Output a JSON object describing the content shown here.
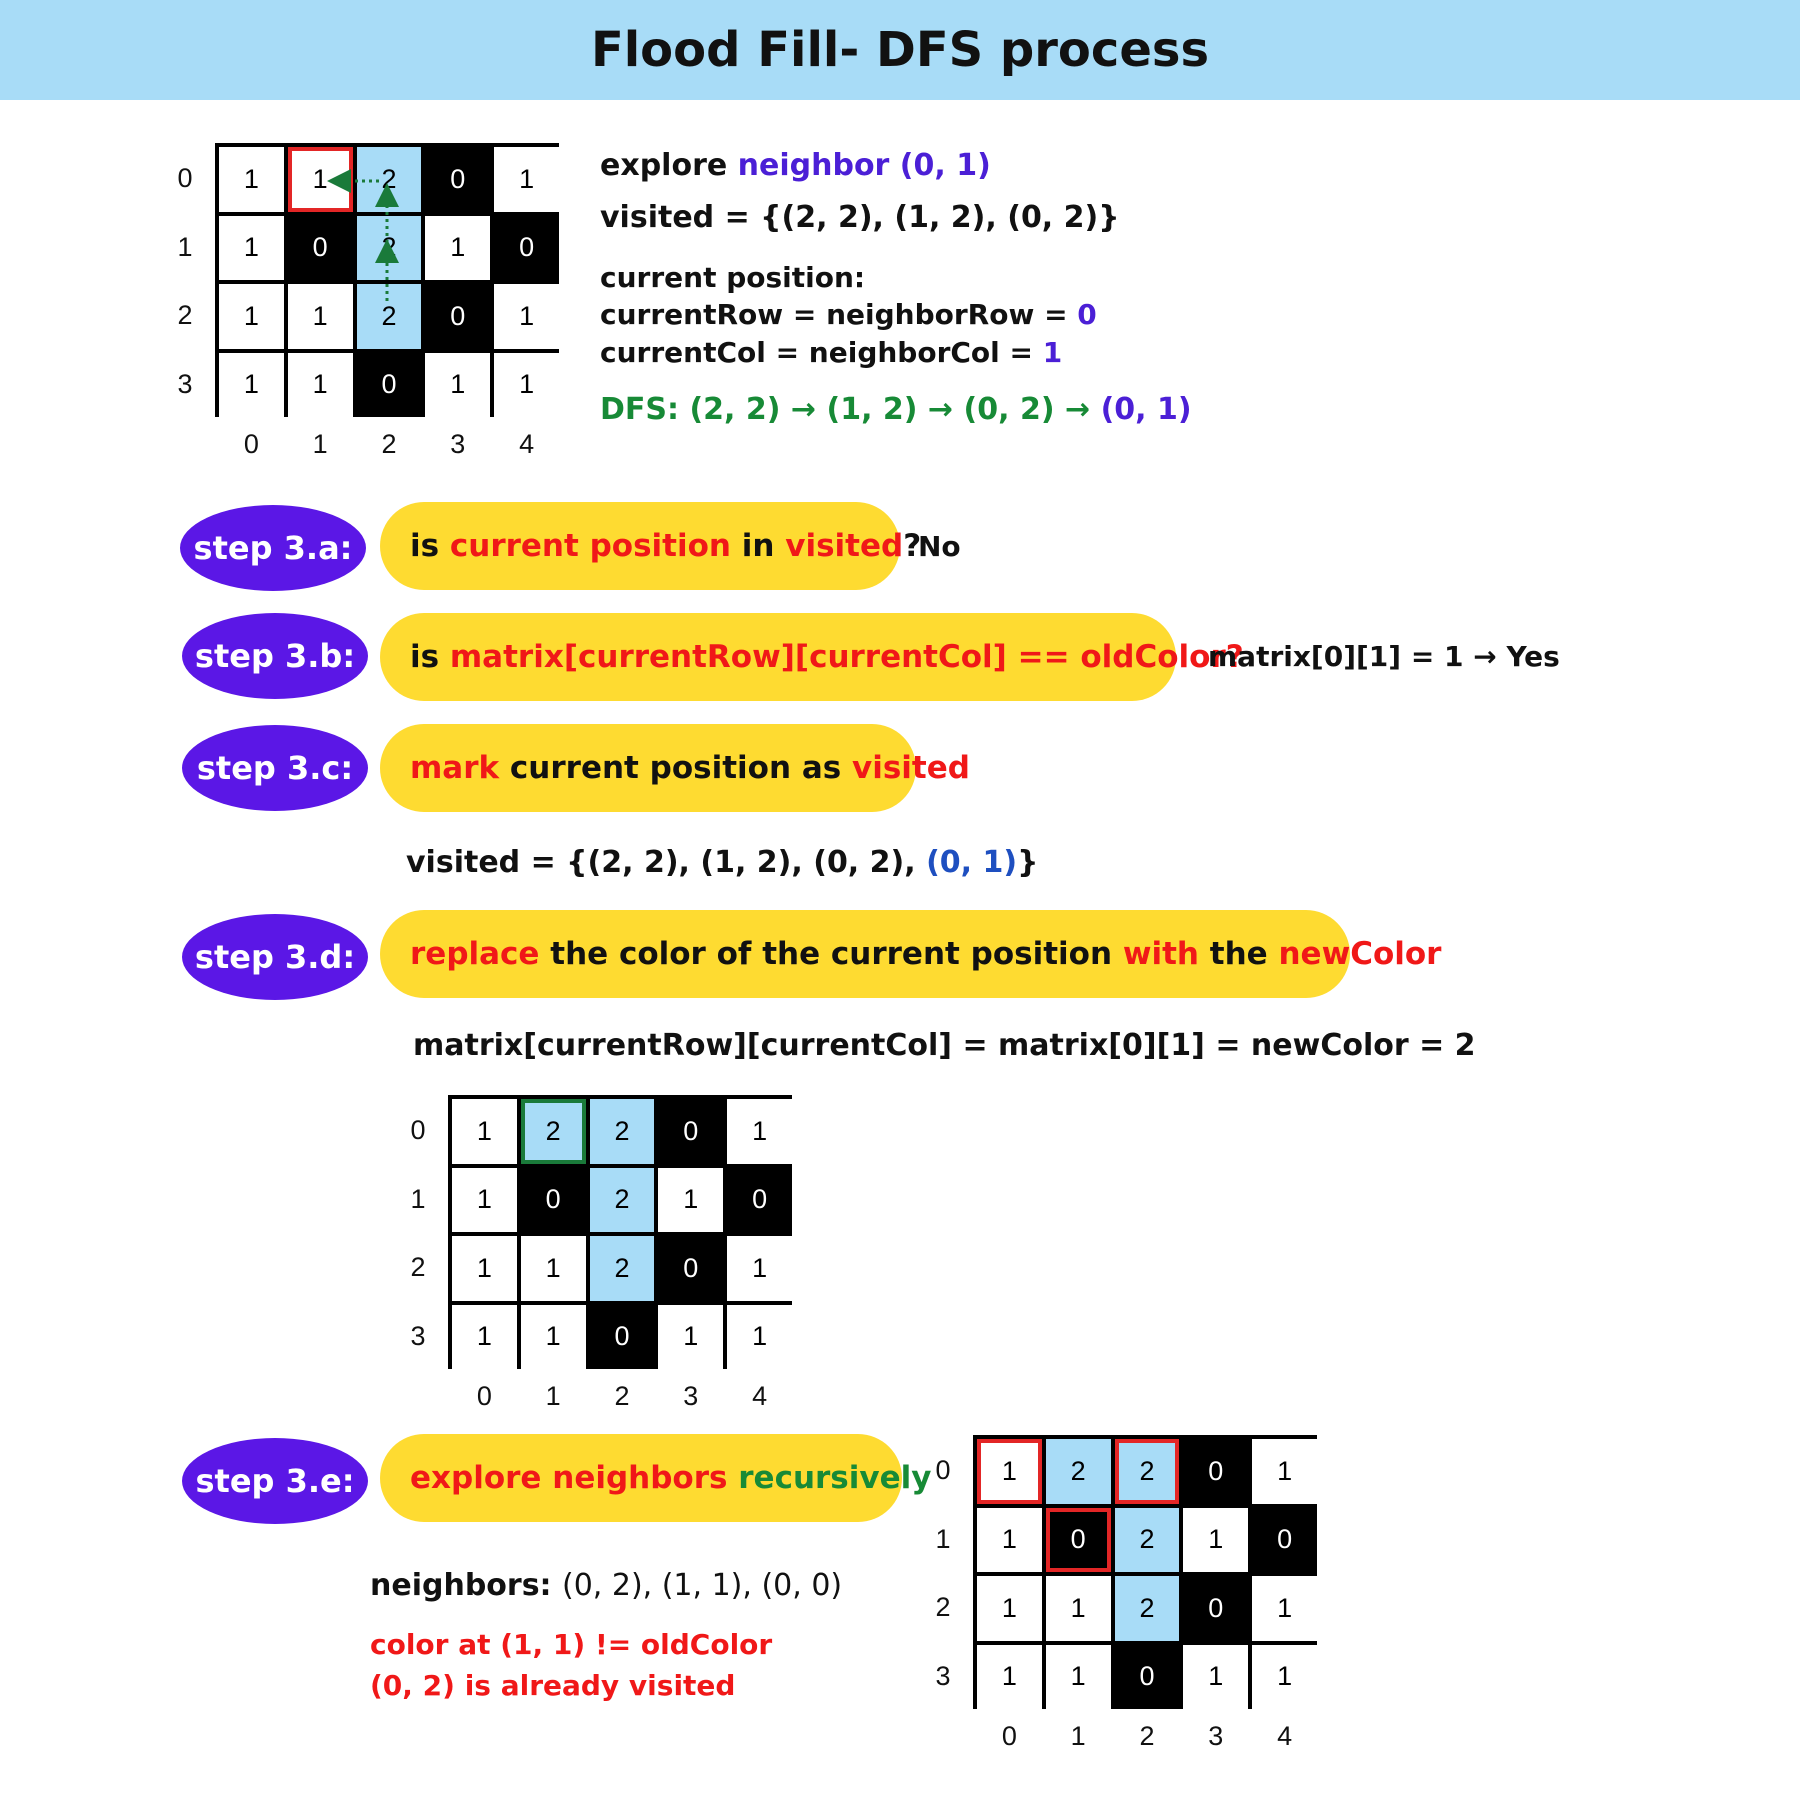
{
  "title": "Flood Fill- DFS process",
  "colors": {
    "blue_cell": "#a8dcf7",
    "header": "#a8dcf7",
    "step_oval": "#5b17e6",
    "pill": "#fedb31",
    "highlight_red": "#e32626",
    "highlight_green": "#1a7a3a"
  },
  "row_labels": [
    "0",
    "1",
    "2",
    "3"
  ],
  "col_labels": [
    "0",
    "1",
    "2",
    "3",
    "4"
  ],
  "grid1": [
    [
      "1",
      "1",
      "2",
      "0",
      "1"
    ],
    [
      "1",
      "0",
      "2",
      "1",
      "0"
    ],
    [
      "1",
      "1",
      "2",
      "0",
      "1"
    ],
    [
      "1",
      "1",
      "0",
      "1",
      "1"
    ]
  ],
  "grid2": [
    [
      "1",
      "2",
      "2",
      "0",
      "1"
    ],
    [
      "1",
      "0",
      "2",
      "1",
      "0"
    ],
    [
      "1",
      "1",
      "2",
      "0",
      "1"
    ],
    [
      "1",
      "1",
      "0",
      "1",
      "1"
    ]
  ],
  "grid3": [
    [
      "1",
      "2",
      "2",
      "0",
      "1"
    ],
    [
      "1",
      "0",
      "2",
      "1",
      "0"
    ],
    [
      "1",
      "1",
      "2",
      "0",
      "1"
    ],
    [
      "1",
      "1",
      "0",
      "1",
      "1"
    ]
  ],
  "info": {
    "explore_prefix": "explore ",
    "explore_word": "neighbor",
    "explore_coord": " (0, 1)",
    "visited": "visited = {(2, 2), (1, 2), (0, 2)}",
    "current_position": "current position:",
    "current_row": "currentRow = neighborRow = ",
    "current_row_val": "0",
    "current_col": "currentCol = neighborCol = ",
    "current_col_val": "1",
    "dfs_prefix": "DFS: (2, 2) → (1, 2) → (0, 2) → ",
    "dfs_last": "(0, 1)"
  },
  "steps": {
    "a": {
      "label": "step 3.a:",
      "p1": "is ",
      "p2": "current position",
      "p3": " in ",
      "p4": "visited",
      "p5": "?",
      "answer": "No"
    },
    "b": {
      "label": "step 3.b:",
      "p1": "is ",
      "p2": "matrix[currentRow][currentCol] == oldColor?",
      "answer": "matrix[0][1] = 1 → Yes"
    },
    "c": {
      "label": "step 3.c:",
      "p1": "mark",
      "p2": " current position as ",
      "p3": "visited",
      "visited_prefix": "visited = {(2, 2), (1, 2), (0, 2), ",
      "visited_new": "(0, 1)",
      "visited_suffix": "}"
    },
    "d": {
      "label": "step 3.d:",
      "p1": "replace",
      "p2": " the color of the current position ",
      "p3": "with",
      "p4": " the ",
      "p5": "newColor",
      "formula": "matrix[currentRow][currentCol] = matrix[0][1] = newColor = 2"
    },
    "e": {
      "label": "step 3.e:",
      "p1": "explore ",
      "p2": "neighbors",
      "p3": " recursively",
      "neighbors_label": "neighbors: ",
      "neighbors": "(0, 2), (1, 1), (0, 0)",
      "note1": "color at (1, 1) != oldColor",
      "note2": "(0, 2) is already visited"
    }
  }
}
